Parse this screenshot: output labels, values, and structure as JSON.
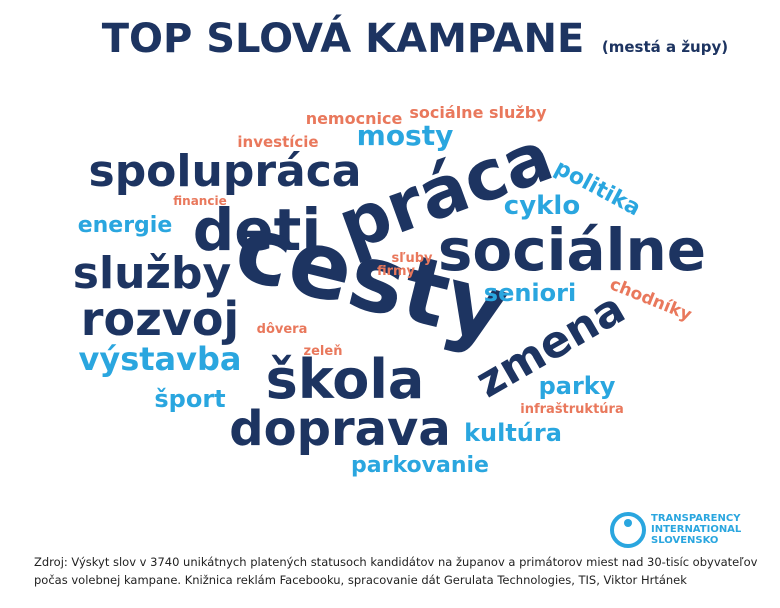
{
  "header": {
    "title": "TOP SLOVÁ KAMPANE",
    "subtitle": "(mestá a župy)"
  },
  "words": [
    "nemocnice",
    "sociálne služby",
    "investície",
    "mosty",
    "spolupráca",
    "práca",
    "politika",
    "financie",
    "cyklo",
    "energie",
    "deti",
    "sociálne",
    "služby",
    "cesty",
    "sľuby",
    "firmy",
    "seniori",
    "chodníky",
    "rozvoj",
    "dôvera",
    "zmena",
    "výstavba",
    "zeleň",
    "škola",
    "parky",
    "šport",
    "infraštruktúra",
    "doprava",
    "kultúra",
    "parkovanie"
  ],
  "logo": [
    "TRANSPARENCY",
    "INTERNATIONAL",
    "SLOVENSKO"
  ],
  "source": [
    "Zdroj: Výskyt slov v 3740 unikátnych platených statusoch kandidátov na županov a primátorov miest nad 30-tisíc obyvateľov",
    "počas volebnej kampane. Knižnica reklám Facebooku, spracovanie dát Gerulata Technologies, TIS, Viktor Hrtánek"
  ]
}
